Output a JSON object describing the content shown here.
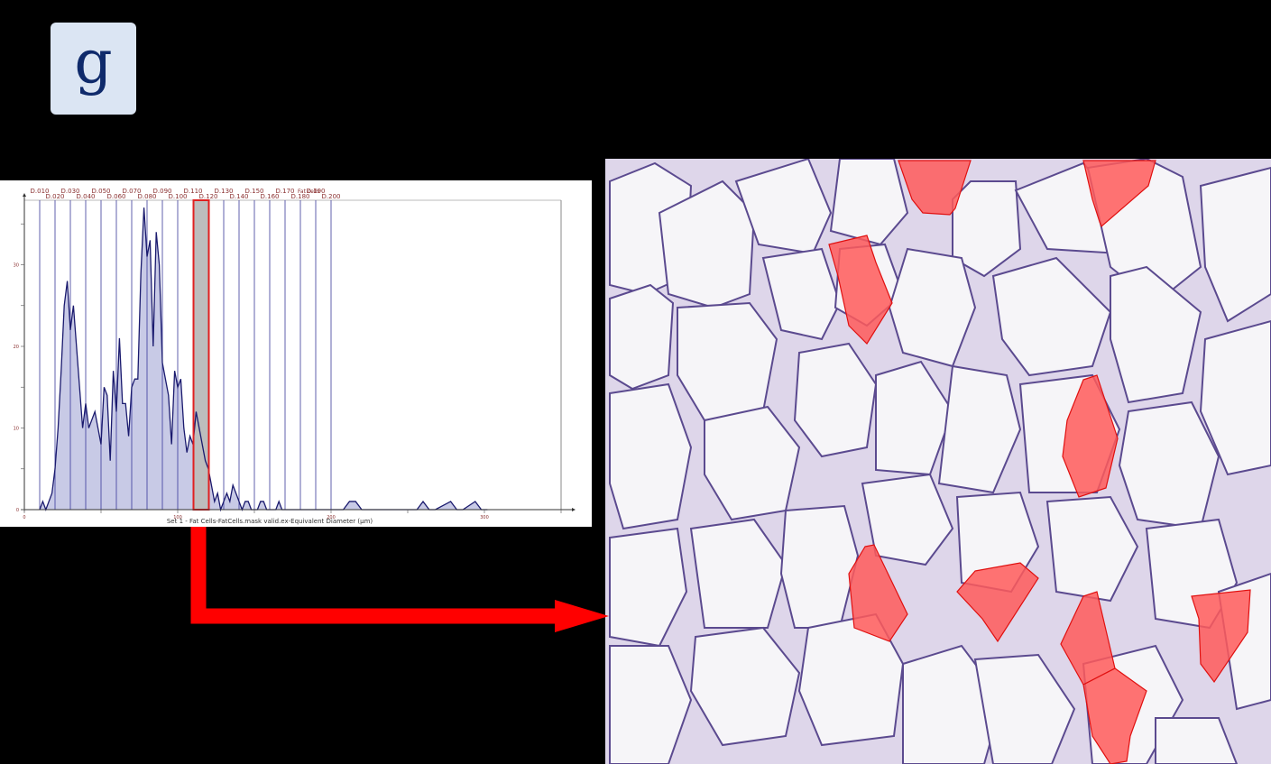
{
  "panel_label": "g",
  "chart_data": {
    "type": "area",
    "title": "",
    "xlabel": "Set 1 - Fat Cells-FatCells.mask valid.ex-Equivalent Diameter (µm)",
    "ylabel": "",
    "x_ticks": [
      "0",
      "100",
      "200",
      "300"
    ],
    "y_ticks": [
      "0",
      "10",
      "20",
      "30",
      "40"
    ],
    "xlim": [
      0,
      350
    ],
    "ylim": [
      0,
      38
    ],
    "grid": false,
    "vertical_markers": [
      "D.010",
      "D.020",
      "D.030",
      "D.040",
      "D.050",
      "D.060",
      "D.070",
      "D.080",
      "D.090",
      "D.100",
      "D.110",
      "D.120",
      "D.130",
      "D.140",
      "D.150",
      "D.160",
      "D.170",
      "D.180",
      "D.190",
      "D.200"
    ],
    "marker_annotation": "Fat cells",
    "highlighted_bin": {
      "label": "D.120",
      "x_range_um": [
        110,
        120
      ],
      "color": "#e02020"
    },
    "x": [
      10,
      12,
      14,
      16,
      18,
      20,
      22,
      24,
      26,
      28,
      30,
      32,
      34,
      36,
      38,
      40,
      42,
      44,
      46,
      48,
      50,
      52,
      54,
      56,
      58,
      60,
      62,
      64,
      66,
      68,
      70,
      72,
      74,
      76,
      78,
      80,
      82,
      84,
      86,
      88,
      90,
      92,
      94,
      96,
      98,
      100,
      102,
      104,
      106,
      108,
      110,
      112,
      114,
      116,
      118,
      120,
      122,
      124,
      126,
      128,
      130,
      132,
      134,
      136,
      138,
      140,
      142,
      144,
      146,
      148,
      150,
      152,
      154,
      156,
      158,
      160,
      162,
      164,
      166,
      168,
      170,
      172,
      174,
      176,
      178,
      180,
      182,
      184,
      186,
      188,
      190,
      192,
      194,
      196,
      198,
      200,
      204,
      208,
      212,
      216,
      220,
      224,
      228,
      232,
      236,
      240,
      256,
      260,
      264,
      268,
      278,
      282,
      286,
      294,
      298,
      302
    ],
    "values": [
      0,
      1,
      0,
      1,
      2,
      5,
      10,
      17,
      25,
      28,
      22,
      25,
      20,
      15,
      10,
      13,
      10,
      11,
      12,
      10,
      8,
      15,
      14,
      6,
      17,
      12,
      21,
      13,
      13,
      9,
      15,
      16,
      16,
      29,
      37,
      31,
      33,
      20,
      34,
      30,
      18,
      16,
      14,
      8,
      17,
      15,
      16,
      10,
      7,
      9,
      8,
      12,
      10,
      8,
      6,
      5,
      3,
      1,
      2,
      0,
      1,
      2,
      1,
      3,
      2,
      1,
      0,
      1,
      1,
      0,
      0,
      0,
      1,
      1,
      0,
      0,
      0,
      0,
      1,
      0,
      0,
      0,
      0,
      0,
      0,
      0,
      0,
      0,
      0,
      0,
      0,
      0,
      0,
      0,
      0,
      0,
      0,
      0,
      1,
      1,
      0,
      0,
      0,
      0,
      0,
      0,
      0,
      1,
      0,
      0,
      1,
      0,
      0,
      1,
      0,
      0
    ],
    "series_color": "#1a1a6e",
    "fill_color": "#c8cae6",
    "highlight_fill": "#bdbdbd"
  },
  "image": {
    "description": "H&E-stained adipose tissue micrograph; cells in the highlighted size bin overlaid in red",
    "highlight_color": "#ff5a5a"
  },
  "connector": {
    "color": "#ff0000",
    "from": "highlighted-bin",
    "to": "micrograph"
  }
}
